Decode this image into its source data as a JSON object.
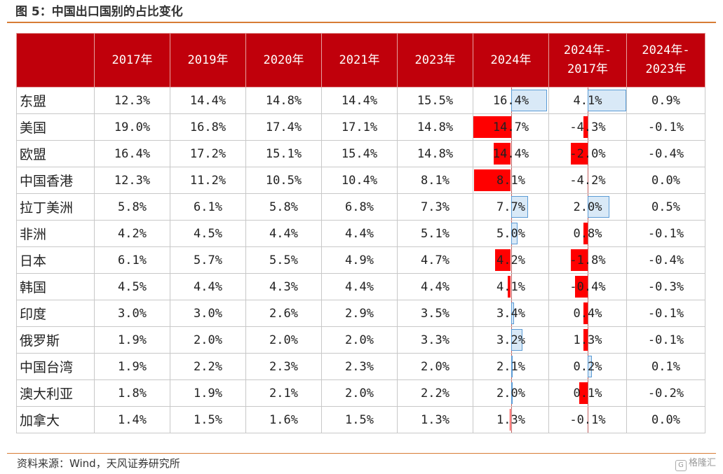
{
  "figure": {
    "title": "图 5：中国出口国别的占比变化",
    "source": "资料来源：Wind，天风证券研究所",
    "watermark": "格隆汇",
    "watermark_logo": "G"
  },
  "colors": {
    "header_bg": "#c0000b",
    "negative_bar": "#ff0000",
    "positive_bar_fill": "#d9e9f7",
    "positive_bar_border": "#5b9bd5",
    "rule": "#d77c35"
  },
  "chart_data": {
    "type": "table",
    "columns": [
      "2017年",
      "2019年",
      "2020年",
      "2021年",
      "2023年",
      "2024年",
      "2024年-2017年",
      "2024年-2023年"
    ],
    "column_headers": [
      [
        "2017年"
      ],
      [
        "2019年"
      ],
      [
        "2020年"
      ],
      [
        "2021年"
      ],
      [
        "2023年"
      ],
      [
        "2024年"
      ],
      [
        "2024年-",
        "2017年"
      ],
      [
        "2024年-",
        "2023年"
      ]
    ],
    "data_bars": {
      "columns": [
        6,
        7
      ],
      "max_abs": [
        4.3,
        0.9
      ]
    },
    "rows": [
      {
        "label": "东盟",
        "values": [
          "12.3%",
          "14.4%",
          "14.8%",
          "14.4%",
          "15.5%",
          "16.4%",
          "4.1%",
          "0.9%"
        ],
        "changes": [
          4.1,
          0.9
        ]
      },
      {
        "label": "美国",
        "values": [
          "19.0%",
          "16.8%",
          "17.4%",
          "17.1%",
          "14.8%",
          "14.7%",
          "-4.3%",
          "-0.1%"
        ],
        "changes": [
          -4.3,
          -0.1
        ]
      },
      {
        "label": "欧盟",
        "values": [
          "16.4%",
          "17.2%",
          "15.1%",
          "15.4%",
          "14.8%",
          "14.4%",
          "-2.0%",
          "-0.4%"
        ],
        "changes": [
          -2.0,
          -0.4
        ]
      },
      {
        "label": "中国香港",
        "values": [
          "12.3%",
          "11.2%",
          "10.5%",
          "10.4%",
          "8.1%",
          "8.1%",
          "-4.2%",
          "0.0%"
        ],
        "changes": [
          -4.2,
          0.0
        ]
      },
      {
        "label": "拉丁美洲",
        "values": [
          "5.8%",
          "6.1%",
          "5.8%",
          "6.8%",
          "7.3%",
          "7.7%",
          "2.0%",
          "0.5%"
        ],
        "changes": [
          2.0,
          0.5
        ]
      },
      {
        "label": "非洲",
        "values": [
          "4.2%",
          "4.5%",
          "4.4%",
          "4.4%",
          "5.1%",
          "5.0%",
          "0.8%",
          "-0.1%"
        ],
        "changes": [
          0.8,
          -0.1
        ]
      },
      {
        "label": "日本",
        "values": [
          "6.1%",
          "5.7%",
          "5.5%",
          "4.9%",
          "4.7%",
          "4.2%",
          "-1.8%",
          "-0.4%"
        ],
        "changes": [
          -1.8,
          -0.4
        ]
      },
      {
        "label": "韩国",
        "values": [
          "4.5%",
          "4.4%",
          "4.3%",
          "4.4%",
          "4.4%",
          "4.1%",
          "-0.4%",
          "-0.3%"
        ],
        "changes": [
          -0.4,
          -0.3
        ]
      },
      {
        "label": "印度",
        "values": [
          "3.0%",
          "3.0%",
          "2.6%",
          "2.9%",
          "3.5%",
          "3.4%",
          "0.4%",
          "-0.1%"
        ],
        "changes": [
          0.4,
          -0.1
        ]
      },
      {
        "label": "俄罗斯",
        "values": [
          "1.9%",
          "2.0%",
          "2.0%",
          "2.0%",
          "3.3%",
          "3.2%",
          "1.3%",
          "-0.1%"
        ],
        "changes": [
          1.3,
          -0.1
        ]
      },
      {
        "label": "中国台湾",
        "values": [
          "1.9%",
          "2.2%",
          "2.3%",
          "2.3%",
          "2.0%",
          "2.1%",
          "0.2%",
          "0.1%"
        ],
        "changes": [
          0.2,
          0.1
        ]
      },
      {
        "label": "澳大利亚",
        "values": [
          "1.8%",
          "1.9%",
          "2.1%",
          "2.0%",
          "2.2%",
          "2.0%",
          "0.1%",
          "-0.2%"
        ],
        "changes": [
          0.1,
          -0.2
        ]
      },
      {
        "label": "加拿大",
        "values": [
          "1.4%",
          "1.5%",
          "1.6%",
          "1.5%",
          "1.3%",
          "1.3%",
          "-0.1%",
          "0.0%"
        ],
        "changes": [
          -0.1,
          0.0
        ]
      }
    ]
  }
}
